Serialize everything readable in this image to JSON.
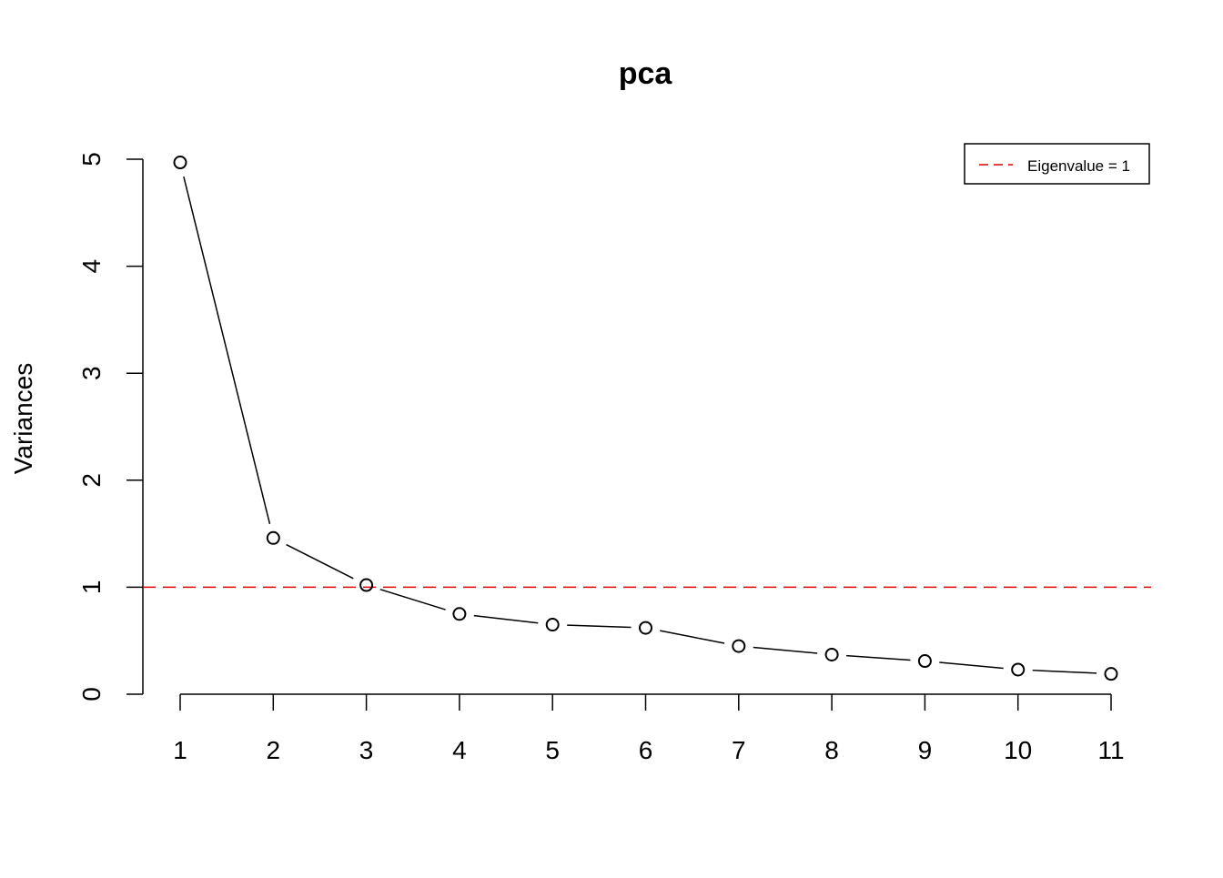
{
  "chart_data": {
    "type": "line",
    "title": "pca",
    "xlabel": "",
    "ylabel": "Variances",
    "x": [
      1,
      2,
      3,
      4,
      5,
      6,
      7,
      8,
      9,
      10,
      11
    ],
    "x_ticks": [
      "1",
      "2",
      "3",
      "4",
      "5",
      "6",
      "7",
      "8",
      "9",
      "10",
      "11"
    ],
    "y_ticks": [
      "0",
      "1",
      "2",
      "3",
      "4",
      "5"
    ],
    "ylim": [
      0,
      5
    ],
    "series": [
      {
        "values": [
          4.97,
          1.46,
          1.02,
          0.75,
          0.65,
          0.62,
          0.45,
          0.37,
          0.31,
          0.23,
          0.19
        ],
        "color": "#000000",
        "marker": "open-circle"
      }
    ],
    "reference_line": {
      "y": 1,
      "color": "#dd0000",
      "style": "dashed",
      "label": "Eigenvalue = 1"
    },
    "legend": {
      "position": "top-right",
      "entries": [
        "Eigenvalue = 1"
      ]
    },
    "grid": false
  }
}
